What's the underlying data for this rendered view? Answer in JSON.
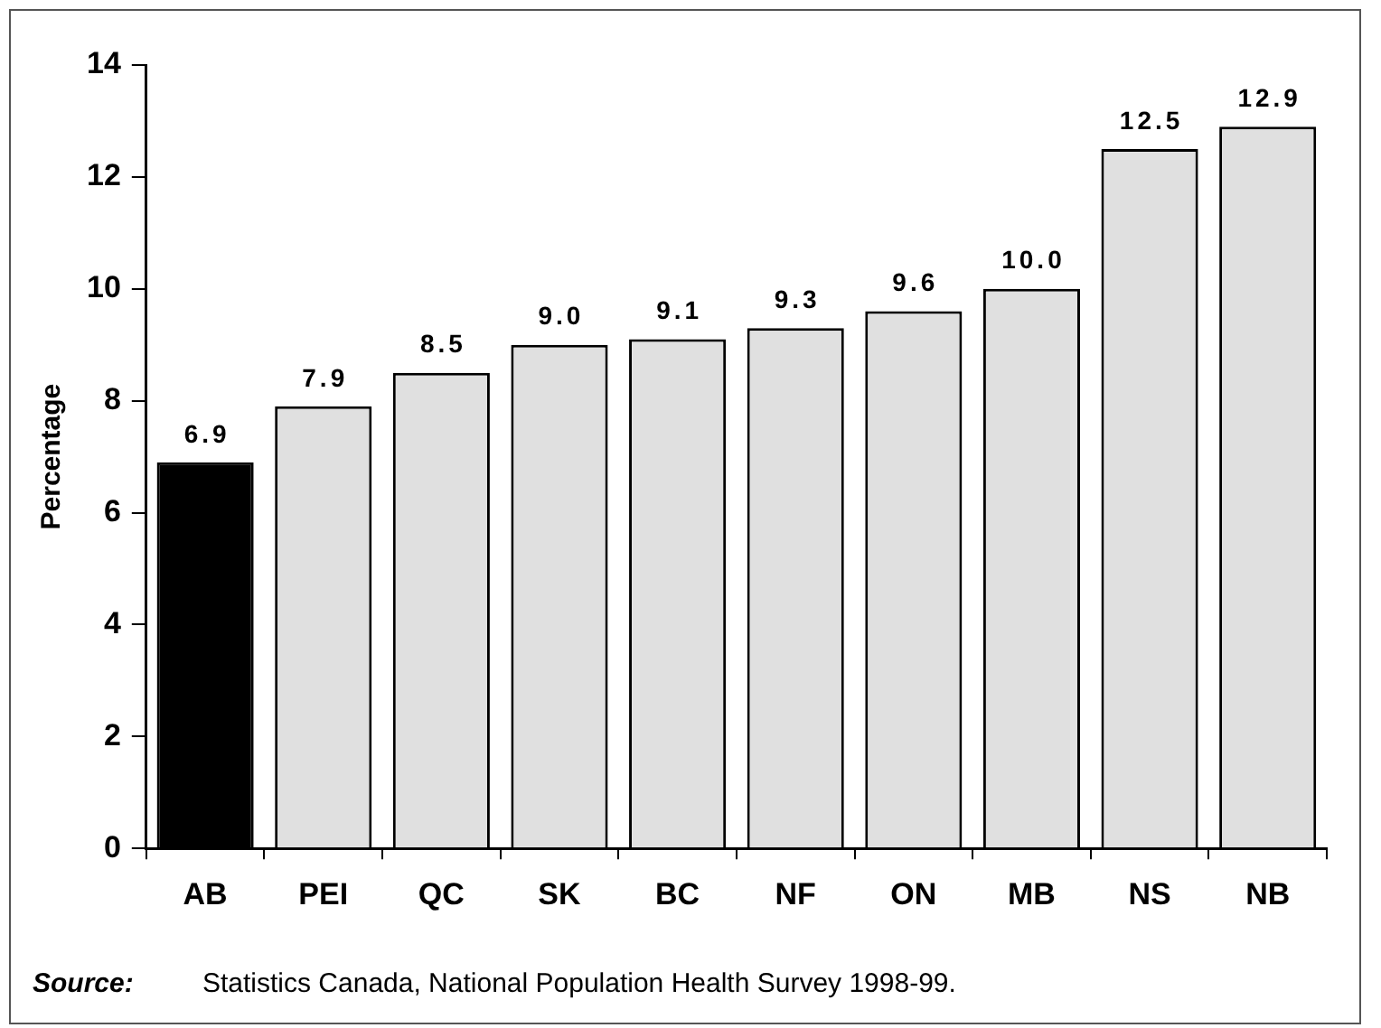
{
  "chart_data": {
    "type": "bar",
    "ylabel": "Percentage",
    "categories": [
      "AB",
      "PEI",
      "QC",
      "SK",
      "BC",
      "NF",
      "ON",
      "MB",
      "NS",
      "NB"
    ],
    "values": [
      6.9,
      7.9,
      8.5,
      9.0,
      9.1,
      9.3,
      9.6,
      10.0,
      12.5,
      12.9
    ],
    "value_labels": [
      "6.9",
      "7.9",
      "8.5",
      "9.0",
      "9.1",
      "9.3",
      "9.6",
      "10.0",
      "12.5",
      "12.9"
    ],
    "colors": [
      "#000000",
      "#e0e0e0",
      "#e0e0e0",
      "#e0e0e0",
      "#e0e0e0",
      "#e0e0e0",
      "#e0e0e0",
      "#e0e0e0",
      "#e0e0e0",
      "#e0e0e0"
    ],
    "ylim": [
      0,
      14
    ],
    "yticks": [
      0,
      2,
      4,
      6,
      8,
      10,
      12,
      14
    ],
    "grid": false,
    "legend": false,
    "annotations": [
      "Source:",
      "Statistics Canada, National Population Health Survey 1998-99."
    ]
  }
}
